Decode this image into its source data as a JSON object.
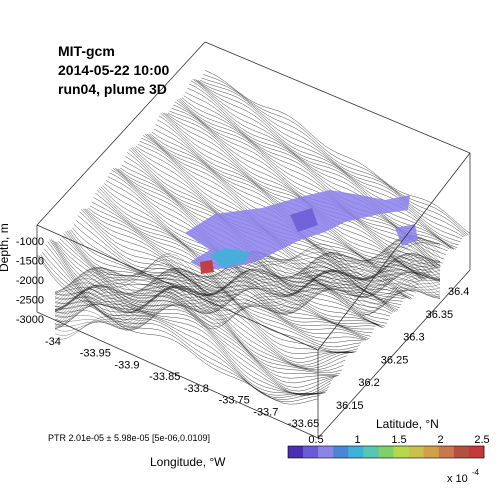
{
  "title": {
    "line1": "MIT-gcm",
    "line2": "2014-05-22 10:00",
    "line3": "run04, plume 3D"
  },
  "info_text": "PTR 2.01e-05 ± 5.98e-05 [5e-06,0.0109]",
  "chart_data": {
    "type": "surface-3d",
    "longitude": {
      "label": "Longitude, °W",
      "ticks": [
        "-34",
        "-33.95",
        "-33.9",
        "-33.85",
        "-33.8",
        "-33.75",
        "-33.7",
        "-33.65"
      ],
      "range": [
        -34.02,
        -33.63
      ]
    },
    "latitude": {
      "label": "Latitude, °N",
      "ticks": [
        "36.15",
        "36.2",
        "36.25",
        "36.3",
        "36.35",
        "36.4"
      ],
      "range": [
        36.13,
        36.42
      ]
    },
    "depth": {
      "label": "Depth, m",
      "ticks": [
        "-1000",
        "-1500",
        "-2000",
        "-2500",
        "-3000"
      ],
      "range": [
        -3200,
        -800
      ]
    },
    "colorbar": {
      "ticks": [
        "0.5",
        "1",
        "1.5",
        "2",
        "2.5"
      ],
      "range": [
        0.5,
        2.5
      ],
      "multiplier": "x 10",
      "exponent": "-4",
      "colors": [
        "#4b2fb3",
        "#6a5bd6",
        "#8a86e6",
        "#4a86d6",
        "#3fb2d8",
        "#58c7b0",
        "#7fcf6a",
        "#b6d84d",
        "#c9c24a",
        "#d0a04a",
        "#c8784a",
        "#b35040",
        "#c23a3a"
      ]
    },
    "bathymetry_color": "#000000",
    "plume_color": "#8a80ec"
  }
}
